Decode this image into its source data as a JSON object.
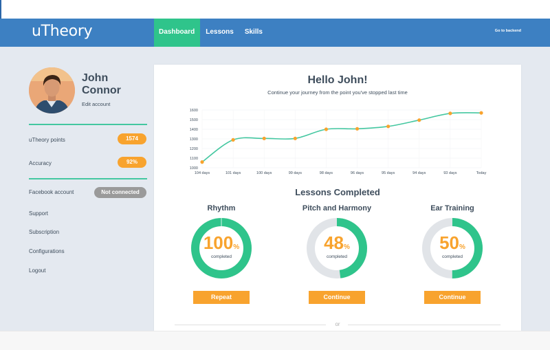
{
  "app": {
    "logo": "uTheory"
  },
  "nav": {
    "items": [
      {
        "label": "Dashboard",
        "active": true
      },
      {
        "label": "Lessons",
        "active": false
      },
      {
        "label": "Skills",
        "active": false
      }
    ],
    "backend_link": "Go to backend"
  },
  "user": {
    "first_name": "John",
    "last_name": "Connor",
    "edit_label": "Edit account"
  },
  "stats": {
    "points_label": "uTheory points",
    "points_value": "1574",
    "accuracy_label": "Accuracy",
    "accuracy_value": "92%"
  },
  "facebook": {
    "label": "Facebook account",
    "status": "Not connected"
  },
  "menu": {
    "support": "Support",
    "subscription": "Subscription",
    "configurations": "Configurations",
    "logout": "Logout"
  },
  "main": {
    "greeting": "Hello John!",
    "subtitle": "Continue your journey from the point you've stopped last time",
    "lessons_title": "Lessons Completed",
    "divider_text": "or"
  },
  "lessons": [
    {
      "title": "Rhythm",
      "percent": 100,
      "percent_text": "100",
      "unit": "%",
      "completed_label": "completed",
      "button": "Repeat"
    },
    {
      "title": "Pitch and Harmony",
      "percent": 48,
      "percent_text": "48",
      "unit": "%",
      "completed_label": "completed",
      "button": "Continue"
    },
    {
      "title": "Ear Training",
      "percent": 50,
      "percent_text": "50",
      "unit": "%",
      "completed_label": "completed",
      "button": "Continue"
    }
  ],
  "colors": {
    "accent_green": "#2fc48b",
    "orange": "#f8a32e",
    "nav_blue": "#3d80c2",
    "ring_gray": "#e1e4e8",
    "text": "#3e4d5c"
  },
  "chart_data": {
    "type": "line",
    "categories": [
      "104 days",
      "101 days",
      "100 days",
      "99 days",
      "98 days",
      "96 days",
      "95 days",
      "94 days",
      "93 days",
      "Today"
    ],
    "values": [
      1060,
      1290,
      1305,
      1305,
      1400,
      1405,
      1430,
      1495,
      1565,
      1570
    ],
    "yticks": [
      "1600",
      "1500",
      "1400",
      "1300",
      "1200",
      "1100",
      "1000"
    ],
    "ylim": [
      1000,
      1600
    ],
    "grid": true,
    "line_color": "#43c7a0",
    "point_color": "#f8a32e"
  }
}
